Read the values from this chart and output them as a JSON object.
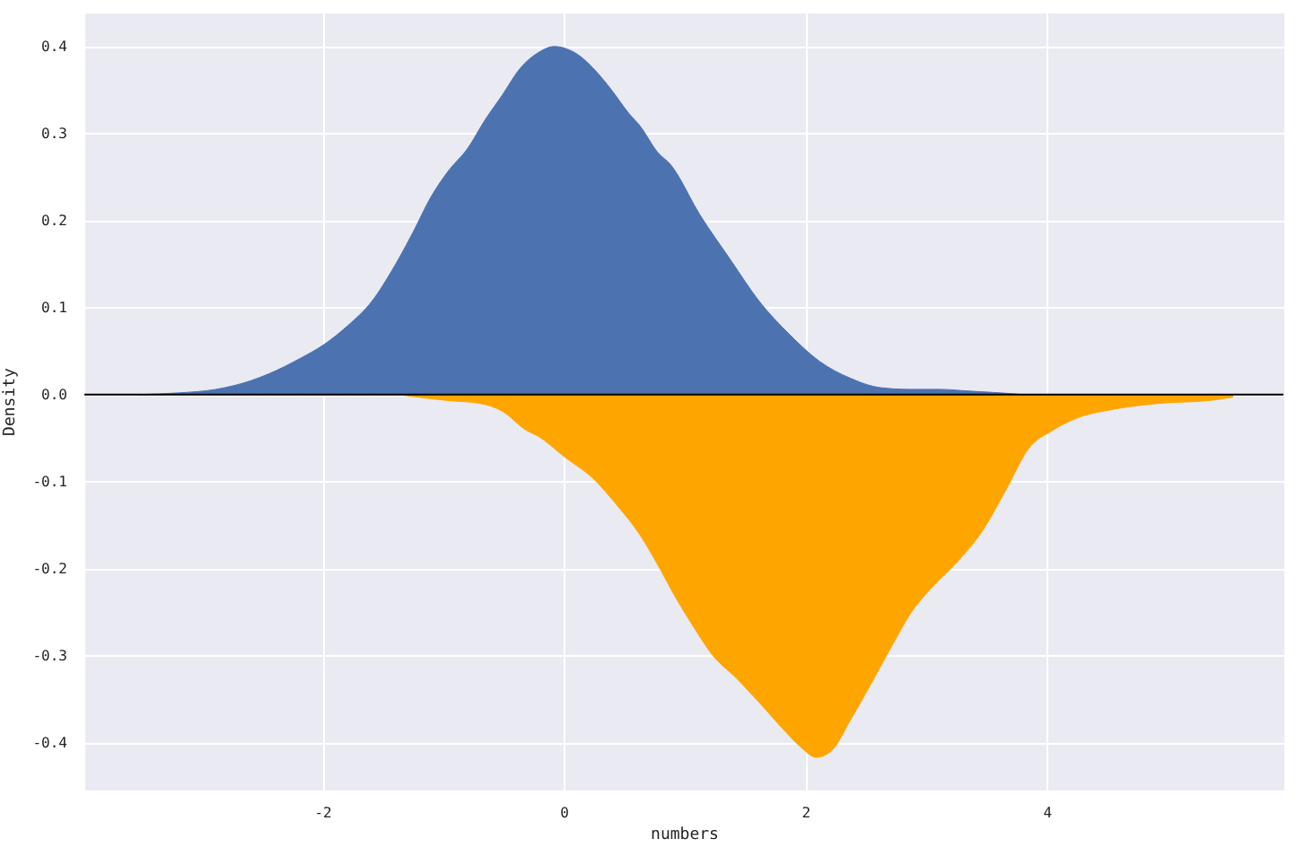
{
  "chart_data": {
    "type": "area",
    "xlabel": "numbers",
    "ylabel": "Density",
    "xlim": [
      -3.97,
      5.96
    ],
    "ylim": [
      -0.454,
      0.439
    ],
    "xticks": [
      -2,
      0,
      2,
      4
    ],
    "yticks": [
      -0.4,
      -0.3,
      -0.2,
      -0.1,
      {
        "value": 0,
        "label": "0.0"
      },
      0.1,
      0.2,
      0.3,
      0.4
    ],
    "grid": true,
    "series": [
      {
        "color": "#4c72b0",
        "x": [
          -3.52,
          -3.18,
          -2.88,
          -2.59,
          -2.44,
          -2.19,
          -1.98,
          -1.79,
          -1.59,
          -1.4,
          -1.25,
          -1.1,
          -0.95,
          -0.8,
          -0.65,
          -0.51,
          -0.36,
          -0.21,
          -0.08,
          0.09,
          0.29,
          0.39,
          0.54,
          0.63,
          0.78,
          0.88,
          1.13,
          1.38,
          1.62,
          1.87,
          2.12,
          2.37,
          2.62,
          2.86,
          3.11,
          3.36,
          3.61,
          3.81
        ],
        "values": [
          0.0,
          0.002,
          0.006,
          0.016,
          0.024,
          0.041,
          0.058,
          0.079,
          0.107,
          0.148,
          0.186,
          0.227,
          0.258,
          0.282,
          0.316,
          0.344,
          0.375,
          0.393,
          0.4,
          0.393,
          0.368,
          0.351,
          0.323,
          0.309,
          0.278,
          0.265,
          0.206,
          0.155,
          0.107,
          0.069,
          0.038,
          0.019,
          0.008,
          0.006,
          0.006,
          0.004,
          0.002,
          0.0
        ]
      },
      {
        "color": "#ffa500",
        "x": [
          -1.32,
          -0.95,
          -0.7,
          -0.51,
          -0.31,
          -0.21,
          0.01,
          0.24,
          0.44,
          0.63,
          0.78,
          0.93,
          1.08,
          1.23,
          1.43,
          1.62,
          1.82,
          1.97,
          2.09,
          2.22,
          2.37,
          2.57,
          2.76,
          2.86,
          3.06,
          3.26,
          3.46,
          3.66,
          3.85,
          4.05,
          4.25,
          4.55,
          4.94,
          5.34,
          5.54
        ],
        "values": [
          -0.001,
          -0.007,
          -0.01,
          -0.019,
          -0.041,
          -0.048,
          -0.072,
          -0.096,
          -0.127,
          -0.161,
          -0.196,
          -0.234,
          -0.268,
          -0.299,
          -0.326,
          -0.354,
          -0.385,
          -0.406,
          -0.417,
          -0.409,
          -0.375,
          -0.326,
          -0.278,
          -0.254,
          -0.22,
          -0.192,
          -0.158,
          -0.11,
          -0.062,
          -0.041,
          -0.027,
          -0.017,
          -0.01,
          -0.007,
          -0.003
        ]
      }
    ],
    "ref_lines": [
      {
        "axis": "y",
        "value": 0,
        "color": "#000000"
      }
    ]
  }
}
